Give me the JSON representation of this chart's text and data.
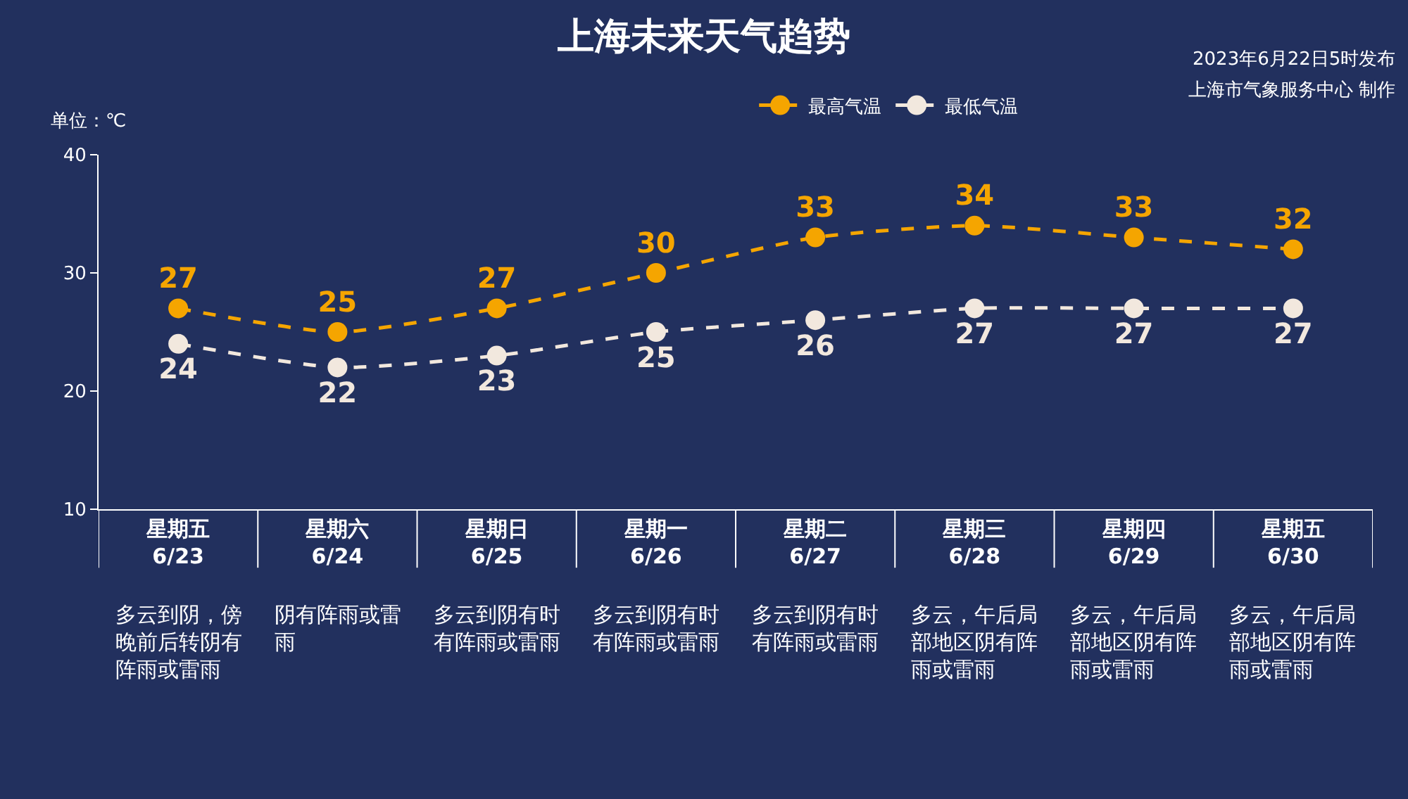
{
  "chart_data": {
    "type": "line",
    "title": "上海未来天气趋势",
    "ylabel": "单位：℃",
    "categories": [
      "星期五\n6/23",
      "星期六\n6/24",
      "星期日\n6/25",
      "星期一\n6/26",
      "星期二\n6/27",
      "星期三\n6/28",
      "星期四\n6/29",
      "星期五\n6/30"
    ],
    "series": [
      {
        "name": "最高气温",
        "color": "#f5a500",
        "values": [
          27,
          25,
          27,
          30,
          33,
          34,
          33,
          32
        ]
      },
      {
        "name": "最低气温",
        "color": "#f2e8de",
        "values": [
          24,
          22,
          23,
          25,
          26,
          27,
          27,
          27
        ]
      }
    ],
    "annotations": [
      "2023年6月22日5时发布",
      "上海市气象服务中心 制作",
      "多云到阴，傍晚前后转阴有阵雨或雷雨",
      "阴有阵雨或雷雨",
      "多云到阴有时有阵雨或雷雨",
      "多云到阴有时有阵雨或雷雨",
      "多云到阴有时有阵雨或雷雨",
      "多云，午后局部地区阴有阵雨或雷雨",
      "多云，午后局部地区阴有阵雨或雷雨",
      "多云，午后局部地区阴有阵雨或雷雨"
    ],
    "ylim": [
      10,
      40
    ],
    "yticks": [
      10,
      20,
      30,
      40
    ],
    "legend": "top",
    "marker": "circle",
    "line_style": "dashed",
    "data_labels": true
  }
}
